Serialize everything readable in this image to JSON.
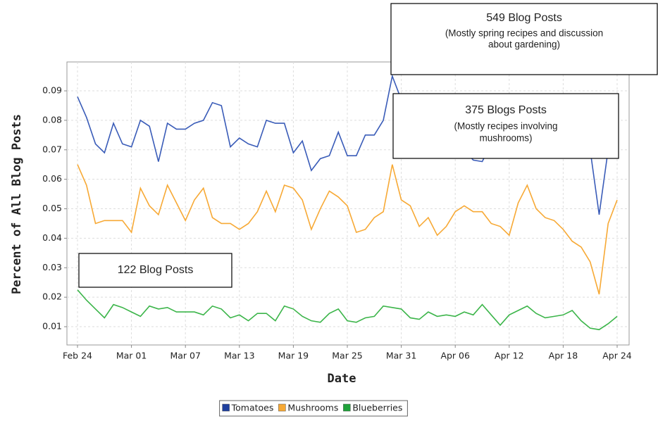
{
  "chart_data": {
    "type": "line",
    "xlabel": "Date",
    "ylabel": "Percent of All Blog Posts",
    "categories": [
      "Feb 24",
      null,
      null,
      null,
      null,
      null,
      "Mar 01",
      null,
      null,
      null,
      null,
      null,
      "Mar 07",
      null,
      null,
      null,
      null,
      null,
      "Mar 13",
      null,
      null,
      null,
      null,
      null,
      "Mar 19",
      null,
      null,
      null,
      null,
      null,
      "Mar 25",
      null,
      null,
      null,
      null,
      null,
      "Mar 31",
      null,
      null,
      null,
      null,
      null,
      "Apr 06",
      null,
      null,
      null,
      null,
      null,
      "Apr 12",
      null,
      null,
      null,
      null,
      null,
      "Apr 18",
      null,
      null,
      null,
      null,
      null,
      "Apr 24"
    ],
    "series": [
      {
        "name": "Tomatoes",
        "color": "#3a5cb8",
        "legend_color": "#1f3f9e",
        "values": [
          0.088,
          0.081,
          0.072,
          0.069,
          0.079,
          0.072,
          0.071,
          0.08,
          0.078,
          0.066,
          0.079,
          0.077,
          0.077,
          0.079,
          0.08,
          0.086,
          0.085,
          0.071,
          0.074,
          0.072,
          0.071,
          0.08,
          0.079,
          0.079,
          0.069,
          0.073,
          0.063,
          0.067,
          0.068,
          0.076,
          0.068,
          0.068,
          0.075,
          0.075,
          0.08,
          0.095,
          0.087,
          0.08,
          0.078,
          0.075,
          0.077,
          0.072,
          0.074,
          0.07,
          0.0665,
          0.066,
          0.072,
          0.075,
          0.073,
          0.077,
          0.079,
          0.076,
          0.074,
          0.078,
          0.075,
          0.072,
          0.074,
          0.07,
          0.048,
          0.07,
          0.078
        ]
      },
      {
        "name": "Mushrooms",
        "color": "#f7a935",
        "legend_color": "#f7a935",
        "values": [
          0.065,
          0.058,
          0.045,
          0.046,
          0.046,
          0.046,
          0.042,
          0.057,
          0.051,
          0.048,
          0.058,
          0.052,
          0.046,
          0.053,
          0.057,
          0.047,
          0.045,
          0.045,
          0.043,
          0.045,
          0.049,
          0.056,
          0.049,
          0.058,
          0.057,
          0.053,
          0.043,
          0.05,
          0.056,
          0.054,
          0.051,
          0.042,
          0.043,
          0.047,
          0.049,
          0.065,
          0.053,
          0.051,
          0.044,
          0.047,
          0.041,
          0.044,
          0.049,
          0.051,
          0.049,
          0.049,
          0.045,
          0.044,
          0.041,
          0.052,
          0.058,
          0.05,
          0.047,
          0.046,
          0.043,
          0.039,
          0.037,
          0.032,
          0.021,
          0.045,
          0.053
        ]
      },
      {
        "name": "Blueberries",
        "color": "#3cb54a",
        "legend_color": "#1fa23a",
        "values": [
          0.0225,
          0.019,
          0.016,
          0.013,
          0.0175,
          0.0165,
          0.015,
          0.0135,
          0.017,
          0.016,
          0.0165,
          0.015,
          0.015,
          0.015,
          0.014,
          0.017,
          0.016,
          0.013,
          0.014,
          0.012,
          0.0145,
          0.0145,
          0.012,
          0.017,
          0.016,
          0.0135,
          0.012,
          0.0115,
          0.0145,
          0.016,
          0.012,
          0.0115,
          0.013,
          0.0135,
          0.017,
          0.0165,
          0.016,
          0.013,
          0.0125,
          0.015,
          0.0135,
          0.014,
          0.0135,
          0.015,
          0.014,
          0.0175,
          0.014,
          0.0105,
          0.014,
          0.0155,
          0.017,
          0.0145,
          0.013,
          0.0135,
          0.014,
          0.0155,
          0.012,
          0.0095,
          0.009,
          0.011,
          0.0135
        ]
      }
    ],
    "ylim": [
      0.0038,
      0.0998
    ],
    "yticks": [
      0.01,
      0.02,
      0.03,
      0.04,
      0.05,
      0.06,
      0.07,
      0.08,
      0.09
    ],
    "grid": true,
    "legend": "bottom",
    "annotations": [
      {
        "lines": [
          "549 Blog Posts",
          "(Mostly spring recipes and discussion",
          "about gardening)"
        ]
      },
      {
        "lines": [
          "375 Blogs Posts",
          "(Mostly recipes involving",
          "mushrooms)"
        ]
      },
      {
        "lines": [
          "122 Blog Posts"
        ]
      }
    ]
  }
}
